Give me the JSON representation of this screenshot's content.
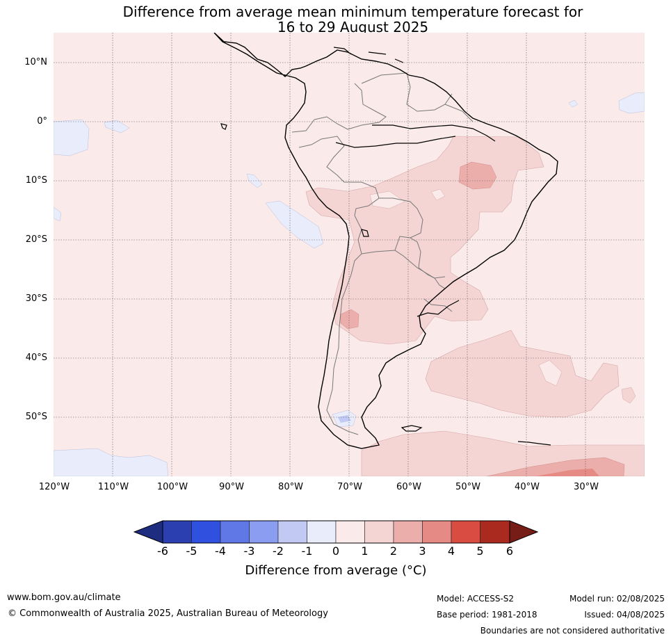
{
  "title": {
    "line1": "Difference from average mean minimum temperature forecast for",
    "line2": "16 to 29 August 2025"
  },
  "map": {
    "lat_labels": [
      "10°N",
      "0°",
      "10°S",
      "20°S",
      "30°S",
      "40°S",
      "50°S"
    ],
    "lon_labels": [
      "120°W",
      "110°W",
      "100°W",
      "90°W",
      "80°W",
      "70°W",
      "60°W",
      "50°W",
      "40°W",
      "30°W"
    ],
    "colors": {
      "ocean_background": "#fbeaea",
      "anomaly_0_to_1": "#fbeaea",
      "anomaly_1_to_2": "#f4d5d4",
      "anomaly_2_to_3": "#ecaeab",
      "anomaly_3_to_4": "#e58a84",
      "anomaly_minus1_to_0": "#e9edfb",
      "anomaly_minus2_to_minus1": "#c2c9f3",
      "coastline": "#000000",
      "borders": "#777777"
    }
  },
  "colorbar": {
    "tick_labels": [
      "-6",
      "-5",
      "-4",
      "-3",
      "-2",
      "-1",
      "0",
      "1",
      "2",
      "3",
      "4",
      "5",
      "6"
    ],
    "colors": [
      "#1f2d80",
      "#2b3fb1",
      "#3050e0",
      "#5f78e6",
      "#8a9df0",
      "#c2c9f3",
      "#e9edfb",
      "#fbeaea",
      "#f4d5d4",
      "#ecaeab",
      "#e58a84",
      "#d84c42",
      "#ab2a20",
      "#771d17"
    ],
    "label": "Difference from average (°C)"
  },
  "footer": {
    "website": "www.bom.gov.au/climate",
    "copyright": "© Commonwealth of Australia 2025, Australian Bureau of Meteorology",
    "model": "Model: ACCESS-S2",
    "base_period": "Base period: 1981-2018",
    "model_run": "Model run: 02/08/2025",
    "issued": "Issued: 04/08/2025",
    "disclaimer": "Boundaries are not considered authoritative"
  }
}
